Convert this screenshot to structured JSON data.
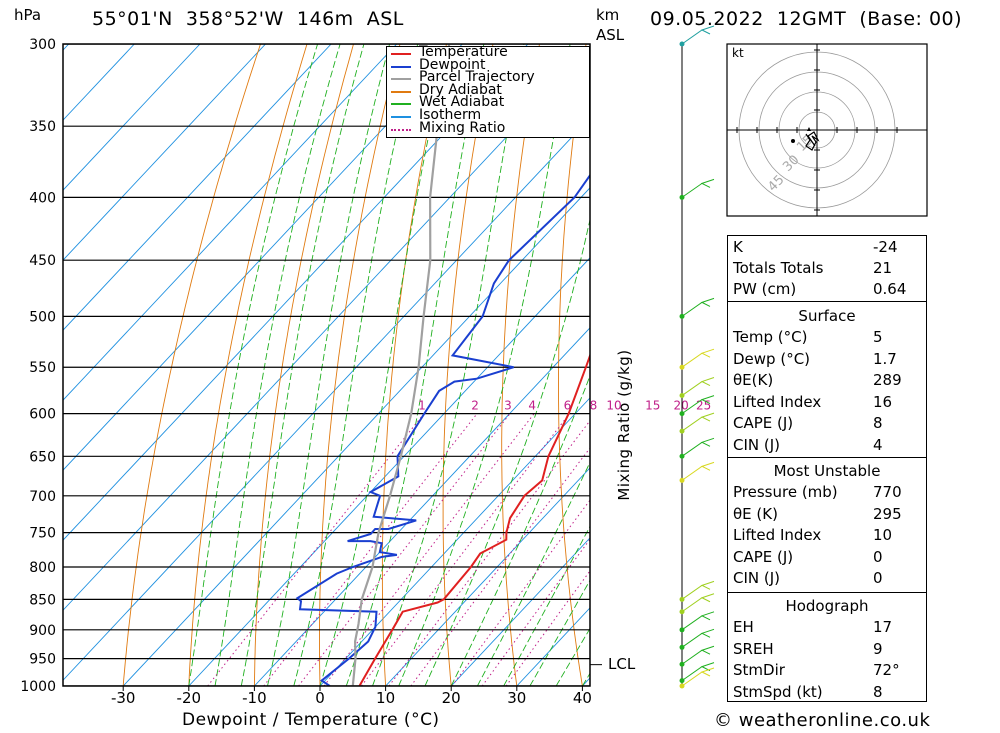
{
  "header": {
    "location": "55°01'N  358°52'W  146m  ASL",
    "datetime": "09.05.2022  12GMT  (Base: 00)",
    "pressure_unit": "hPa",
    "height_unit_line1": "km",
    "height_unit_line2": "ASL"
  },
  "axes": {
    "pressure_levels": [
      "300",
      "350",
      "400",
      "450",
      "500",
      "550",
      "600",
      "650",
      "700",
      "750",
      "800",
      "850",
      "900",
      "950",
      "1000"
    ],
    "temp_ticks": [
      "-30",
      "-20",
      "-10",
      "0",
      "10",
      "20",
      "30",
      "40"
    ],
    "xlabel": "Dewpoint / Temperature (°C)",
    "mixing_label": "Mixing Ratio (g/kg)",
    "mixing_values": [
      "1",
      "2",
      "3",
      "4",
      "6",
      "8",
      "10",
      "15",
      "20",
      "25"
    ],
    "lcl_label": "LCL"
  },
  "legend": {
    "items": [
      {
        "label": "Temperature",
        "color": "#e02020",
        "style": "solid"
      },
      {
        "label": "Dewpoint",
        "color": "#1a3fd0",
        "style": "solid"
      },
      {
        "label": "Parcel Trajectory",
        "color": "#a0a0a0",
        "style": "solid"
      },
      {
        "label": "Dry Adiabat",
        "color": "#e07a10",
        "style": "solid"
      },
      {
        "label": "Wet Adiabat",
        "color": "#20b020",
        "style": "solid"
      },
      {
        "label": "Isotherm",
        "color": "#1e90e0",
        "style": "solid"
      },
      {
        "label": "Mixing Ratio",
        "color": "#c0208a",
        "style": "dotted"
      }
    ]
  },
  "chart_data": {
    "type": "line",
    "series": [
      {
        "name": "Temperature",
        "color": "#e02020",
        "points": [
          [
            6,
            1000
          ],
          [
            4.5,
            950
          ],
          [
            3,
            900
          ],
          [
            2,
            870
          ],
          [
            6,
            855
          ],
          [
            6.5,
            850
          ],
          [
            6,
            800
          ],
          [
            5.5,
            780
          ],
          [
            7.5,
            760
          ],
          [
            6.5,
            750
          ],
          [
            5,
            730
          ],
          [
            4,
            700
          ],
          [
            4.5,
            680
          ],
          [
            2,
            650
          ],
          [
            -1,
            600
          ],
          [
            -5,
            550
          ],
          [
            -9.5,
            500
          ],
          [
            -14,
            450
          ],
          [
            -19.5,
            400
          ],
          [
            -25,
            350
          ],
          [
            -32,
            310
          ],
          [
            -32,
            300
          ]
        ]
      },
      {
        "name": "Dewpoint",
        "color": "#1a3fd0",
        "points": [
          [
            1.5,
            1000
          ],
          [
            -0.5,
            990
          ],
          [
            0.5,
            950
          ],
          [
            1,
            920
          ],
          [
            0,
            895
          ],
          [
            -2,
            870
          ],
          [
            -14,
            866
          ],
          [
            -15,
            853
          ],
          [
            -16,
            848
          ],
          [
            -13.5,
            810
          ],
          [
            -12,
            800
          ],
          [
            -9,
            785
          ],
          [
            -7,
            782
          ],
          [
            -10,
            778
          ],
          [
            -11,
            765
          ],
          [
            -13,
            762
          ],
          [
            -16.5,
            762
          ],
          [
            -14,
            752
          ],
          [
            -14,
            745
          ],
          [
            -12,
            745
          ],
          [
            -9,
            733
          ],
          [
            -16,
            728
          ],
          [
            -18,
            700
          ],
          [
            -20,
            695
          ],
          [
            -18,
            675
          ],
          [
            -21,
            650
          ],
          [
            -23,
            600
          ],
          [
            -24,
            575
          ],
          [
            -23,
            565
          ],
          [
            -20,
            562
          ],
          [
            -16,
            550
          ],
          [
            -27,
            538
          ],
          [
            -28,
            500
          ],
          [
            -31,
            470
          ],
          [
            -32,
            450
          ],
          [
            -31,
            400
          ],
          [
            -33,
            360
          ],
          [
            -31,
            330
          ],
          [
            -27,
            320
          ],
          [
            -22,
            310
          ],
          [
            -22,
            300
          ]
        ]
      },
      {
        "name": "Parcel Trajectory",
        "color": "#a0a0a0",
        "points": [
          [
            5,
            1000
          ],
          [
            1.5,
            950
          ],
          [
            -1,
            920
          ],
          [
            -3,
            890
          ],
          [
            -6,
            850
          ],
          [
            -9,
            800
          ],
          [
            -13,
            750
          ],
          [
            -16.5,
            700
          ],
          [
            -20.5,
            650
          ],
          [
            -25,
            600
          ],
          [
            -30.5,
            550
          ],
          [
            -37,
            500
          ],
          [
            -44,
            450
          ],
          [
            -53,
            400
          ],
          [
            -62,
            350
          ],
          [
            -72,
            300
          ]
        ]
      }
    ],
    "lcl_pressure": 950,
    "pressure_range": [
      1000,
      300
    ],
    "temp_range": [
      -40,
      40
    ],
    "mixing_ratio_values": [
      1,
      2,
      3,
      4,
      6,
      8,
      10,
      15,
      20,
      25
    ]
  },
  "hodograph": {
    "unit": "kt",
    "ring_labels": [
      "15",
      "30",
      "45"
    ]
  },
  "indices": {
    "k": {
      "label": "K",
      "value": "-24"
    },
    "tt": {
      "label": "Totals Totals",
      "value": "21"
    },
    "pw": {
      "label": "PW (cm)",
      "value": "0.64"
    }
  },
  "surface": {
    "title": "Surface",
    "rows": [
      {
        "label": "Temp (°C)",
        "value": "5"
      },
      {
        "label": "Dewp (°C)",
        "value": "1.7"
      },
      {
        "label": "θE(K)",
        "value": "289"
      },
      {
        "label": "Lifted Index",
        "value": "16"
      },
      {
        "label": "CAPE (J)",
        "value": "8"
      },
      {
        "label": "CIN (J)",
        "value": "4"
      }
    ]
  },
  "most_unstable": {
    "title": "Most Unstable",
    "rows": [
      {
        "label": "Pressure (mb)",
        "value": "770"
      },
      {
        "label": "θE (K)",
        "value": "295"
      },
      {
        "label": "Lifted Index",
        "value": "10"
      },
      {
        "label": "CAPE (J)",
        "value": "0"
      },
      {
        "label": "CIN (J)",
        "value": "0"
      }
    ]
  },
  "hodo_table": {
    "title": "Hodograph",
    "rows": [
      {
        "label": "EH",
        "value": "17"
      },
      {
        "label": "SREH",
        "value": "9"
      },
      {
        "label": "StmDir",
        "value": "72°"
      },
      {
        "label": "StmSpd (kt)",
        "value": "8"
      }
    ]
  },
  "footer": {
    "credit": "© weatheronline.co.uk"
  }
}
